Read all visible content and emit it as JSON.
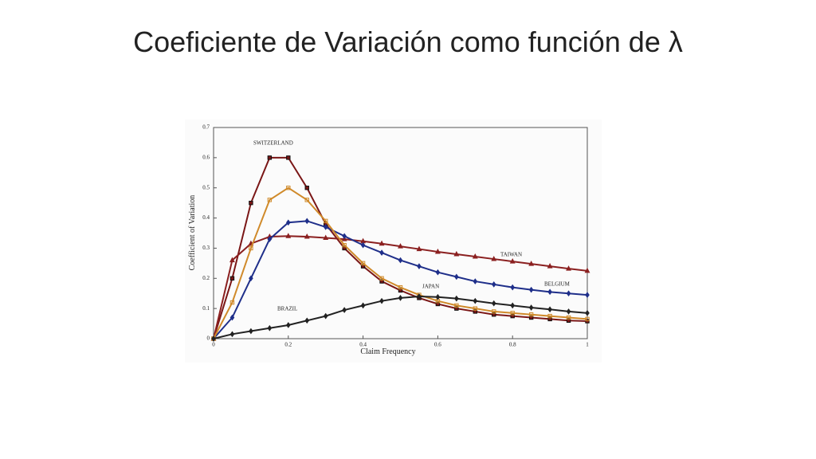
{
  "chart_data": {
    "type": "line",
    "title": "Coeficiente de Variación como función de λ",
    "x_label": "Claim Frequency",
    "y_label": "Coefficient of Variation",
    "x": [
      0,
      0.05,
      0.1,
      0.15,
      0.2,
      0.25,
      0.3,
      0.35,
      0.4,
      0.45,
      0.5,
      0.55,
      0.6,
      0.65,
      0.7,
      0.75,
      0.8,
      0.85,
      0.9,
      0.95,
      1
    ],
    "xlim": [
      0,
      1
    ],
    "xticks": [
      0,
      0.2,
      0.4,
      0.6,
      0.8,
      1
    ],
    "ylim": [
      0,
      0.7
    ],
    "yticks": [
      0,
      0.1,
      0.2,
      0.3,
      0.4,
      0.5,
      0.6,
      0.7
    ],
    "series": [
      {
        "name": "SWITZERLAND",
        "color": "#7a1616",
        "marker": "square",
        "values": [
          0,
          0.2,
          0.45,
          0.6,
          0.6,
          0.5,
          0.38,
          0.3,
          0.24,
          0.19,
          0.16,
          0.135,
          0.115,
          0.1,
          0.09,
          0.08,
          0.075,
          0.07,
          0.065,
          0.06,
          0.058
        ]
      },
      {
        "name": "TAIWAN",
        "color": "#8b2020",
        "marker": "triangle",
        "values": [
          0,
          0.26,
          0.315,
          0.338,
          0.34,
          0.338,
          0.334,
          0.33,
          0.323,
          0.315,
          0.306,
          0.297,
          0.288,
          0.28,
          0.272,
          0.264,
          0.256,
          0.248,
          0.24,
          0.232,
          0.225
        ]
      },
      {
        "name": "BELGIUM",
        "color": "#1f2f8a",
        "marker": "diamond",
        "values": [
          0,
          0.07,
          0.2,
          0.33,
          0.385,
          0.39,
          0.37,
          0.34,
          0.31,
          0.285,
          0.26,
          0.24,
          0.22,
          0.205,
          0.19,
          0.18,
          0.17,
          0.162,
          0.155,
          0.15,
          0.145
        ]
      },
      {
        "name": "JAPAN",
        "color": "#d08a2a",
        "marker": "square",
        "values": [
          0,
          0.12,
          0.3,
          0.46,
          0.5,
          0.46,
          0.39,
          0.31,
          0.25,
          0.2,
          0.17,
          0.145,
          0.125,
          0.11,
          0.1,
          0.09,
          0.085,
          0.08,
          0.075,
          0.07,
          0.065
        ]
      },
      {
        "name": "BRAZIL",
        "color": "#222222",
        "marker": "diamond",
        "values": [
          0,
          0.015,
          0.025,
          0.035,
          0.045,
          0.06,
          0.075,
          0.095,
          0.11,
          0.125,
          0.135,
          0.14,
          0.138,
          0.133,
          0.125,
          0.117,
          0.11,
          0.103,
          0.097,
          0.09,
          0.085
        ]
      }
    ]
  }
}
